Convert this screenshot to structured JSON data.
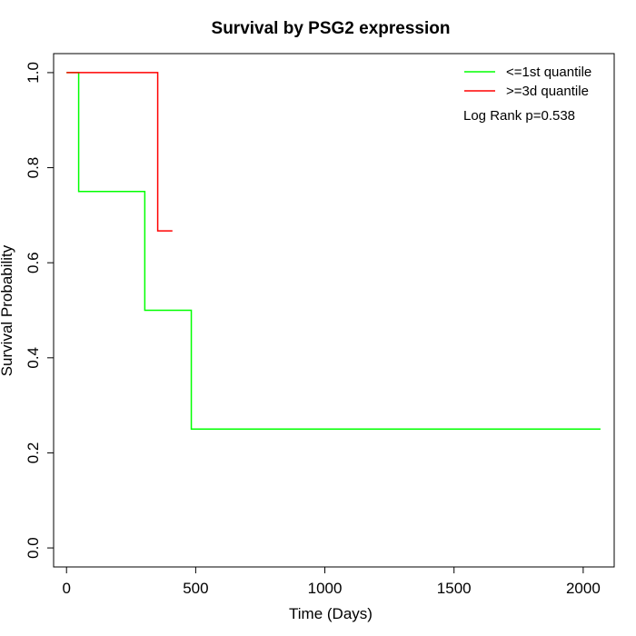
{
  "chart_data": {
    "type": "line",
    "subtype": "kaplan-meier-step",
    "title": "Survival by PSG2 expression",
    "xlabel": "Time (Days)",
    "ylabel": "Survival Probability",
    "xlim": [
      -50,
      2120
    ],
    "ylim": [
      -0.04,
      1.04
    ],
    "xticks": [
      0,
      500,
      1000,
      1500,
      2000
    ],
    "yticks": [
      0.0,
      0.2,
      0.4,
      0.6,
      0.8,
      1.0
    ],
    "xtick_labels": [
      "0",
      "500",
      "1000",
      "1500",
      "2000"
    ],
    "ytick_labels": [
      "0.0",
      "0.2",
      "0.4",
      "0.6",
      "0.8",
      "1.0"
    ],
    "grid": false,
    "legend_position": "top-right",
    "series": [
      {
        "name": "<=1st quantile",
        "color": "#00ff00",
        "x": [
          0,
          47,
          47,
          303,
          303,
          483,
          483,
          2067
        ],
        "y": [
          1.0,
          1.0,
          0.75,
          0.75,
          0.5,
          0.5,
          0.25,
          0.25
        ]
      },
      {
        "name": ">=3d quantile",
        "color": "#ff0000",
        "x": [
          0,
          353,
          353,
          410
        ],
        "y": [
          1.0,
          1.0,
          0.667,
          0.667
        ]
      }
    ],
    "annotations": [
      {
        "text": "Log Rank p=0.538"
      }
    ]
  }
}
